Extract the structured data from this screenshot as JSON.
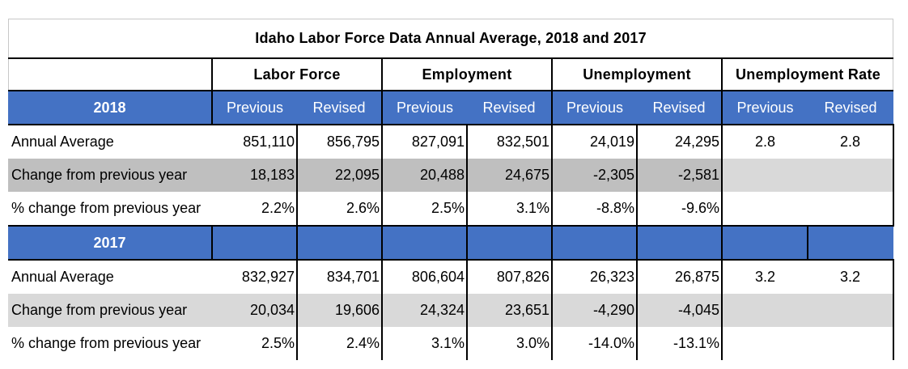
{
  "title": "Idaho Labor Force Data Annual Average, 2018 and 2017",
  "groups": [
    "Labor Force",
    "Employment",
    "Unemployment",
    "Unemployment Rate"
  ],
  "subheaders": [
    "Previous",
    "Revised",
    "Previous",
    "Revised",
    "Previous",
    "Revised",
    "Previous",
    "Revised"
  ],
  "years": [
    {
      "label": "2018",
      "rows": [
        {
          "label": "Annual Average",
          "values": [
            "851,110",
            "856,795",
            "827,091",
            "832,501",
            "24,019",
            "24,295"
          ],
          "rates": [
            "2.8",
            "2.8"
          ]
        },
        {
          "label": "Change from previous year",
          "values": [
            "18,183",
            "22,095",
            "20,488",
            "24,675",
            "-2,305",
            "-2,581"
          ],
          "rates": [
            "",
            ""
          ]
        },
        {
          "label": "% change from previous year",
          "values": [
            "2.2%",
            "2.6%",
            "2.5%",
            "3.1%",
            "-8.8%",
            "-9.6%"
          ],
          "rates": [
            "",
            ""
          ]
        }
      ]
    },
    {
      "label": "2017",
      "rows": [
        {
          "label": "Annual Average",
          "values": [
            "832,927",
            "834,701",
            "806,604",
            "807,826",
            "26,323",
            "26,875"
          ],
          "rates": [
            "3.2",
            "3.2"
          ]
        },
        {
          "label": "Change from previous year",
          "values": [
            "20,034",
            "19,606",
            "24,324",
            "23,651",
            "-4,290",
            "-4,045"
          ],
          "rates": [
            "",
            ""
          ]
        },
        {
          "label": "% change from previous year",
          "values": [
            "2.5%",
            "2.4%",
            "3.1%",
            "3.0%",
            "-14.0%",
            "-13.1%"
          ],
          "rates": [
            "",
            ""
          ]
        }
      ]
    }
  ],
  "colors": {
    "header_blue": "#4472c4",
    "gray_dark": "#bfbfbf",
    "gray_light": "#d9d9d9"
  }
}
